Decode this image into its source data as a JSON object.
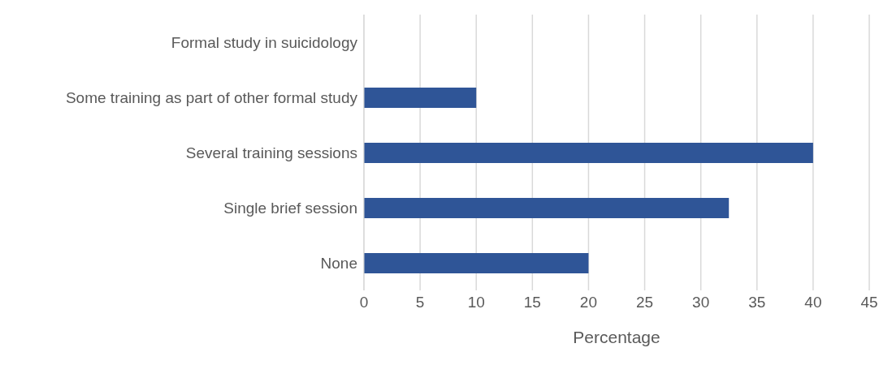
{
  "chart_data": {
    "type": "bar",
    "orientation": "horizontal",
    "xlabel": "Percentage",
    "categories": [
      "Formal study in suicidology",
      "Some training as part of other formal study",
      "Several training sessions",
      "Single brief session",
      "None"
    ],
    "values": [
      0,
      10,
      40,
      32.5,
      20
    ],
    "color": "#2f5597",
    "xlim": [
      0,
      45
    ],
    "xticks": [
      0,
      5,
      10,
      15,
      20,
      25,
      30,
      35,
      40,
      45
    ],
    "grid": "x"
  }
}
